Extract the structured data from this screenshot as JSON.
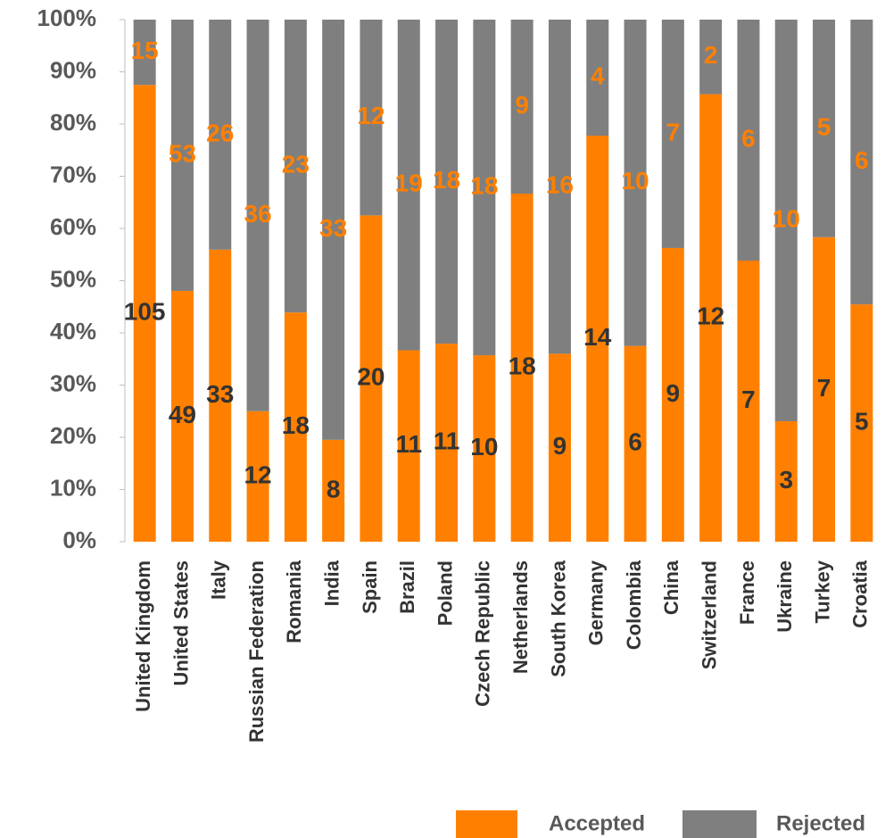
{
  "chart_data": {
    "type": "bar",
    "stacking": "percent",
    "categories": [
      "United Kingdom",
      "United States",
      "Italy",
      "Russian Federation",
      "Romania",
      "India",
      "Spain",
      "Brazil",
      "Poland",
      "Czech Republic",
      "Netherlands",
      "South Korea",
      "Germany",
      "Colombia",
      "China",
      "Switzerland",
      "France",
      "Ukraine",
      "Turkey",
      "Croatia"
    ],
    "series": [
      {
        "name": "Accepted",
        "color": "#ff8000",
        "label_color": "#333333",
        "values": [
          105,
          49,
          33,
          12,
          18,
          8,
          20,
          11,
          11,
          10,
          18,
          9,
          14,
          6,
          9,
          12,
          7,
          3,
          7,
          5
        ]
      },
      {
        "name": "Rejected",
        "color": "#7f7f7f",
        "label_color": "#ff8000",
        "values": [
          15,
          53,
          26,
          36,
          23,
          33,
          12,
          19,
          18,
          18,
          9,
          16,
          4,
          10,
          7,
          2,
          6,
          10,
          5,
          6
        ]
      }
    ],
    "ylim": [
      0,
      100
    ],
    "yticks": [
      {
        "value": 0,
        "label": "0%"
      },
      {
        "value": 10,
        "label": "10%"
      },
      {
        "value": 20,
        "label": "20%"
      },
      {
        "value": 30,
        "label": "30%"
      },
      {
        "value": 40,
        "label": "40%"
      },
      {
        "value": 50,
        "label": "50%"
      },
      {
        "value": 60,
        "label": "60%"
      },
      {
        "value": 70,
        "label": "70%"
      },
      {
        "value": 80,
        "label": "80%"
      },
      {
        "value": 90,
        "label": "90%"
      },
      {
        "value": 100,
        "label": "100%"
      }
    ],
    "grid": false,
    "legend": "bottom-right"
  }
}
